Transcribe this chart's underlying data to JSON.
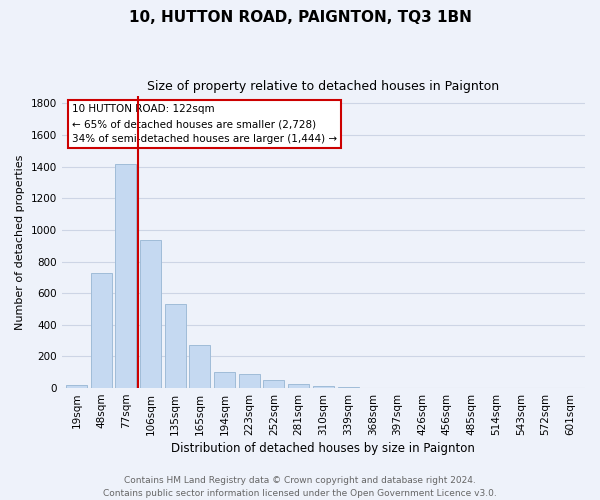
{
  "title": "10, HUTTON ROAD, PAIGNTON, TQ3 1BN",
  "subtitle": "Size of property relative to detached houses in Paignton",
  "xlabel": "Distribution of detached houses by size in Paignton",
  "ylabel": "Number of detached properties",
  "bar_labels": [
    "19sqm",
    "48sqm",
    "77sqm",
    "106sqm",
    "135sqm",
    "165sqm",
    "194sqm",
    "223sqm",
    "252sqm",
    "281sqm",
    "310sqm",
    "339sqm",
    "368sqm",
    "397sqm",
    "426sqm",
    "456sqm",
    "485sqm",
    "514sqm",
    "543sqm",
    "572sqm",
    "601sqm"
  ],
  "bar_values": [
    20,
    730,
    1420,
    935,
    530,
    270,
    100,
    88,
    48,
    25,
    15,
    5,
    3,
    2,
    1,
    1,
    0,
    0,
    0,
    0,
    0
  ],
  "bar_color": "#c5d9f1",
  "bar_edge_color": "#a0bcd8",
  "vline_x_index": 2.5,
  "vline_color": "#cc0000",
  "annotation_title": "10 HUTTON ROAD: 122sqm",
  "annotation_line1": "← 65% of detached houses are smaller (2,728)",
  "annotation_line2": "34% of semi-detached houses are larger (1,444) →",
  "annotation_box_edge": "#cc0000",
  "ylim": [
    0,
    1850
  ],
  "yticks": [
    0,
    200,
    400,
    600,
    800,
    1000,
    1200,
    1400,
    1600,
    1800
  ],
  "footer_line1": "Contains HM Land Registry data © Crown copyright and database right 2024.",
  "footer_line2": "Contains public sector information licensed under the Open Government Licence v3.0.",
  "grid_color": "#cdd5e5",
  "background_color": "#eef2fa",
  "title_fontsize": 11,
  "subtitle_fontsize": 9,
  "xlabel_fontsize": 8.5,
  "ylabel_fontsize": 8,
  "tick_fontsize": 7.5,
  "footer_fontsize": 6.5
}
